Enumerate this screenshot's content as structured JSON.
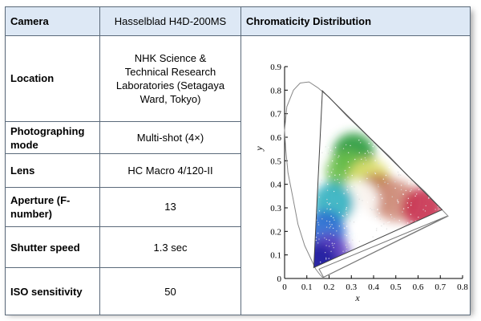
{
  "table": {
    "rows": [
      {
        "label": "Camera",
        "value": "Hasselblad H4D-200MS"
      },
      {
        "label": "Location",
        "value": "NHK Science & Technical Research Laboratories (Setagaya Ward, Tokyo)"
      },
      {
        "label": "Photographing mode",
        "value": "Multi-shot (4×)"
      },
      {
        "label": "Lens",
        "value": "HC Macro 4/120-II"
      },
      {
        "label": "Aperture (F-number)",
        "value": "13"
      },
      {
        "label": "Shutter speed",
        "value": "1.3 sec"
      },
      {
        "label": "ISO sensitivity",
        "value": "50"
      }
    ]
  },
  "chart_heading": "Chromaticity Distribution",
  "colors": {
    "header_bg": "#dde8f5",
    "border": "#5b6a7a"
  },
  "chart_data": {
    "type": "scatter",
    "title": "",
    "xlabel": "x",
    "ylabel": "y",
    "xlim": [
      0,
      0.8
    ],
    "ylim": [
      0,
      0.9
    ],
    "x_ticks": [
      "0",
      "0.1",
      "0.2",
      "0.3",
      "0.4",
      "0.5",
      "0.6",
      "0.7",
      "0.8"
    ],
    "y_ticks": [
      "0",
      "0.1",
      "0.2",
      "0.3",
      "0.4",
      "0.5",
      "0.6",
      "0.7",
      "0.8",
      "0.9"
    ],
    "grid": false,
    "spectral_locus": [
      [
        0.175,
        0.005
      ],
      [
        0.172,
        0.005
      ],
      [
        0.17,
        0.0055
      ],
      [
        0.16,
        0.015
      ],
      [
        0.14,
        0.04
      ],
      [
        0.12,
        0.08
      ],
      [
        0.09,
        0.14
      ],
      [
        0.06,
        0.23
      ],
      [
        0.04,
        0.33
      ],
      [
        0.015,
        0.45
      ],
      [
        0.005,
        0.55
      ],
      [
        0.0,
        0.63
      ],
      [
        0.01,
        0.73
      ],
      [
        0.04,
        0.8
      ],
      [
        0.07,
        0.83
      ],
      [
        0.11,
        0.835
      ],
      [
        0.15,
        0.81
      ],
      [
        0.2,
        0.77
      ],
      [
        0.28,
        0.69
      ],
      [
        0.38,
        0.6
      ],
      [
        0.47,
        0.52
      ],
      [
        0.55,
        0.44
      ],
      [
        0.63,
        0.37
      ],
      [
        0.7,
        0.3
      ],
      [
        0.735,
        0.265
      ]
    ],
    "gamut_triangles": [
      {
        "vertices": [
          [
            0.17,
            0.797
          ],
          [
            0.708,
            0.292
          ],
          [
            0.131,
            0.046
          ]
        ]
      },
      {
        "vertices": [
          [
            0.155,
            0.04
          ],
          [
            0.73,
            0.265
          ],
          [
            0.175,
            0.005
          ]
        ]
      }
    ],
    "point_cloud": [
      {
        "color": "#2a9a3a",
        "center": [
          0.31,
          0.53
        ]
      },
      {
        "color": "#6bbf4a",
        "center": [
          0.28,
          0.45
        ]
      },
      {
        "color": "#e0e070",
        "center": [
          0.38,
          0.42
        ]
      },
      {
        "color": "#c08050",
        "center": [
          0.42,
          0.36
        ]
      },
      {
        "color": "#d09080",
        "center": [
          0.5,
          0.33
        ]
      },
      {
        "color": "#c83050",
        "center": [
          0.62,
          0.3
        ]
      },
      {
        "color": "#ffffff",
        "center": [
          0.33,
          0.33
        ]
      },
      {
        "color": "#30b0c0",
        "center": [
          0.22,
          0.32
        ]
      },
      {
        "color": "#2a6ad0",
        "center": [
          0.18,
          0.2
        ]
      },
      {
        "color": "#6040c0",
        "center": [
          0.2,
          0.1
        ]
      },
      {
        "color": "#2020a0",
        "center": [
          0.15,
          0.06
        ]
      }
    ]
  }
}
